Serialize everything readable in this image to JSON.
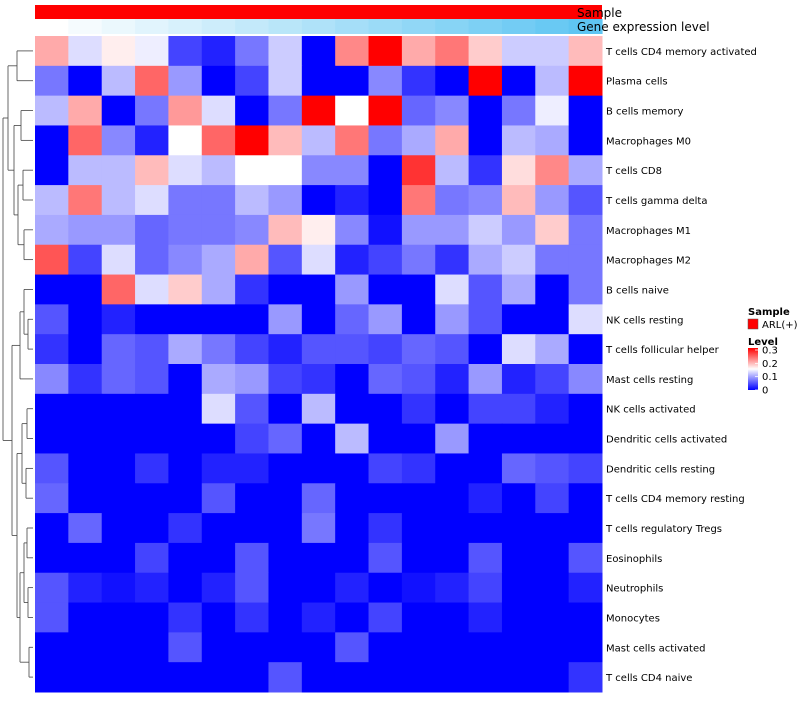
{
  "chart_data": {
    "type": "heatmap",
    "annotation_tracks": [
      {
        "name": "Sample",
        "color": "#ff0000"
      },
      {
        "name": "Gene expression level",
        "gradient": [
          "#ffffff",
          "#5fc5f2"
        ]
      }
    ],
    "rows": [
      "T cells CD4 memory activated",
      "Plasma cells",
      "B cells memory",
      "Macrophages M0",
      "T cells CD8",
      "T cells gamma delta",
      "Macrophages M1",
      "Macrophages M2",
      "B cells naive",
      "NK cells resting",
      "T cells follicular helper",
      "Mast cells resting",
      "NK cells activated",
      "Dendritic cells activated",
      "Dendritic cells resting",
      "T cells CD4 memory resting",
      "T cells regulatory  Tregs",
      "Eosinophils",
      "Neutrophils",
      "Monocytes",
      "Mast cells activated",
      "T cells CD4 naive"
    ],
    "n_columns": 17,
    "values": [
      [
        0.2,
        0.13,
        0.16,
        0.14,
        0.04,
        0.02,
        0.07,
        0.12,
        0.0,
        0.22,
        0.3,
        0.2,
        0.23,
        0.18,
        0.12,
        0.12,
        0.19
      ],
      [
        0.07,
        0.0,
        0.11,
        0.24,
        0.09,
        0.0,
        0.04,
        0.12,
        0.0,
        0.0,
        0.08,
        0.03,
        0.0,
        0.3,
        0.0,
        0.11,
        0.3
      ],
      [
        0.11,
        0.2,
        0.0,
        0.07,
        0.21,
        0.13,
        0.0,
        0.07,
        0.3,
        0.15,
        0.3,
        0.06,
        0.08,
        0.0,
        0.07,
        0.14,
        0.0
      ],
      [
        0.0,
        0.24,
        0.08,
        0.02,
        0.15,
        0.24,
        0.3,
        0.19,
        0.11,
        0.23,
        0.07,
        0.1,
        0.2,
        0.0,
        0.11,
        0.1,
        0.0
      ],
      [
        0.0,
        0.11,
        0.11,
        0.19,
        0.13,
        0.11,
        0.15,
        0.15,
        0.08,
        0.08,
        0.0,
        0.27,
        0.11,
        0.03,
        0.17,
        0.22,
        0.1
      ],
      [
        0.11,
        0.23,
        0.11,
        0.13,
        0.07,
        0.07,
        0.11,
        0.09,
        0.0,
        0.02,
        0.0,
        0.23,
        0.07,
        0.08,
        0.19,
        0.09,
        0.05
      ],
      [
        0.1,
        0.09,
        0.09,
        0.06,
        0.07,
        0.07,
        0.08,
        0.19,
        0.16,
        0.08,
        0.01,
        0.09,
        0.09,
        0.12,
        0.09,
        0.18,
        0.07
      ],
      [
        0.25,
        0.04,
        0.13,
        0.06,
        0.08,
        0.1,
        0.2,
        0.05,
        0.13,
        0.02,
        0.04,
        0.07,
        0.03,
        0.1,
        0.12,
        0.07,
        0.07
      ],
      [
        0.0,
        0.0,
        0.24,
        0.13,
        0.18,
        0.1,
        0.03,
        0.0,
        0.0,
        0.09,
        0.0,
        0.0,
        0.13,
        0.05,
        0.1,
        0.0,
        0.07
      ],
      [
        0.05,
        0.0,
        0.02,
        0.0,
        0.0,
        0.0,
        0.0,
        0.09,
        0.0,
        0.06,
        0.09,
        0.0,
        0.09,
        0.05,
        0.0,
        0.0,
        0.13
      ],
      [
        0.03,
        0.0,
        0.06,
        0.05,
        0.1,
        0.07,
        0.04,
        0.02,
        0.05,
        0.05,
        0.04,
        0.06,
        0.05,
        0.0,
        0.13,
        0.1,
        0.0
      ],
      [
        0.08,
        0.03,
        0.06,
        0.05,
        0.0,
        0.1,
        0.09,
        0.04,
        0.03,
        0.0,
        0.06,
        0.05,
        0.02,
        0.09,
        0.02,
        0.04,
        0.08
      ],
      [
        0.0,
        0.0,
        0.0,
        0.0,
        0.0,
        0.13,
        0.05,
        0.0,
        0.11,
        0.0,
        0.0,
        0.03,
        0.0,
        0.04,
        0.04,
        0.02,
        0.0
      ],
      [
        0.0,
        0.0,
        0.0,
        0.0,
        0.0,
        0.0,
        0.04,
        0.06,
        0.0,
        0.11,
        0.0,
        0.0,
        0.09,
        0.0,
        0.0,
        0.0,
        0.0
      ],
      [
        0.05,
        0.0,
        0.0,
        0.03,
        0.0,
        0.02,
        0.02,
        0.0,
        0.0,
        0.0,
        0.04,
        0.03,
        0.0,
        0.0,
        0.06,
        0.05,
        0.04
      ],
      [
        0.06,
        0.0,
        0.0,
        0.0,
        0.0,
        0.05,
        0.0,
        0.0,
        0.06,
        0.0,
        0.0,
        0.0,
        0.0,
        0.02,
        0.0,
        0.04,
        0.0
      ],
      [
        0.0,
        0.06,
        0.0,
        0.0,
        0.03,
        0.0,
        0.0,
        0.0,
        0.07,
        0.0,
        0.03,
        0.0,
        0.0,
        0.0,
        0.0,
        0.0,
        0.0
      ],
      [
        0.0,
        0.0,
        0.0,
        0.04,
        0.0,
        0.0,
        0.05,
        0.0,
        0.0,
        0.0,
        0.05,
        0.0,
        0.0,
        0.05,
        0.0,
        0.0,
        0.05
      ],
      [
        0.05,
        0.02,
        0.01,
        0.02,
        0.0,
        0.02,
        0.05,
        0.0,
        0.0,
        0.02,
        0.0,
        0.01,
        0.02,
        0.04,
        0.0,
        0.0,
        0.02
      ],
      [
        0.05,
        0.0,
        0.0,
        0.0,
        0.03,
        0.0,
        0.03,
        0.0,
        0.02,
        0.0,
        0.04,
        0.0,
        0.0,
        0.02,
        0.0,
        0.0,
        0.0
      ],
      [
        0.0,
        0.0,
        0.0,
        0.0,
        0.05,
        0.0,
        0.0,
        0.0,
        0.0,
        0.05,
        0.0,
        0.0,
        0.0,
        0.0,
        0.0,
        0.0,
        0.0
      ],
      [
        0.0,
        0.0,
        0.0,
        0.0,
        0.0,
        0.0,
        0.0,
        0.05,
        0.0,
        0.0,
        0.0,
        0.0,
        0.0,
        0.0,
        0.0,
        0.0,
        0.03
      ]
    ],
    "color_scale": {
      "min": 0,
      "mid": 0.15,
      "max": 0.3,
      "low": "#0000ff",
      "mid_color": "#ffffff",
      "high": "#ff0000"
    },
    "legend": {
      "sample_title": "Sample",
      "sample_entry": "ARL(+)",
      "sample_color": "#ff0000",
      "level_title": "Level",
      "ticks": [
        "0.3",
        "0.2",
        "0.1",
        "0"
      ],
      "tick_values": [
        0.3,
        0.2,
        0.1,
        0
      ]
    },
    "row_dendrogram": true
  }
}
